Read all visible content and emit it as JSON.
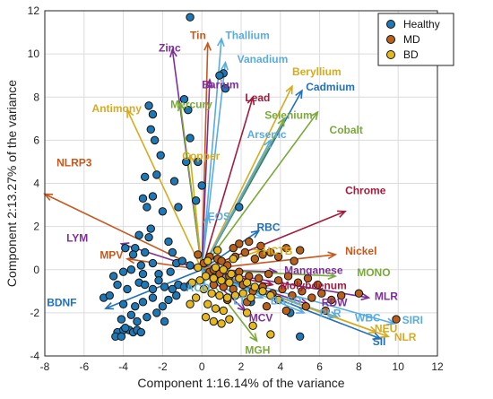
{
  "chart_data": {
    "type": "scatter",
    "title": "",
    "xlabel": "Component 1:16.14% of the variance",
    "ylabel": "Component 2:13.27% of the variance",
    "xlim": [
      -8,
      12
    ],
    "ylim": [
      -4,
      12
    ],
    "xticks": [
      "-8",
      "-6",
      "-4",
      "-2",
      "0",
      "2",
      "4",
      "6",
      "8",
      "10",
      "12"
    ],
    "yticks": [
      "-4",
      "-2",
      "0",
      "2",
      "4",
      "6",
      "8",
      "10",
      "12"
    ],
    "grid": true,
    "legend_position": "top-right",
    "series": [
      {
        "name": "Healthy",
        "color": "#1f77b4",
        "points": [
          [
            -0.6,
            11.7
          ],
          [
            1.1,
            9.1
          ],
          [
            1.2,
            8.4
          ],
          [
            0.9,
            9.0
          ],
          [
            -0.9,
            7.9
          ],
          [
            -0.7,
            7.4
          ],
          [
            -0.8,
            5.0
          ],
          [
            -0.6,
            6.1
          ],
          [
            -2.5,
            7.2
          ],
          [
            -2.6,
            6.5
          ],
          [
            -2.4,
            6.0
          ],
          [
            -2.7,
            7.6
          ],
          [
            -2.1,
            5.3
          ],
          [
            -2.3,
            4.4
          ],
          [
            -2.9,
            4.3
          ],
          [
            -2.5,
            3.4
          ],
          [
            -3.0,
            3.3
          ],
          [
            -2.8,
            2.9
          ],
          [
            -2.0,
            2.7
          ],
          [
            -1.2,
            2.9
          ],
          [
            -0.2,
            5.0
          ],
          [
            0.0,
            3.9
          ],
          [
            -0.3,
            3.2
          ],
          [
            1.9,
            2.9
          ],
          [
            -1.4,
            4.1
          ],
          [
            -3.9,
            1.0
          ],
          [
            -3.2,
            1.6
          ],
          [
            -2.6,
            1.9
          ],
          [
            -2.7,
            1.5
          ],
          [
            -3.4,
            1.0
          ],
          [
            -2.9,
            0.8
          ],
          [
            -3.5,
            0.7
          ],
          [
            -2.5,
            0.3
          ],
          [
            -3.1,
            0.2
          ],
          [
            -3.6,
            0.0
          ],
          [
            -4.0,
            -0.1
          ],
          [
            -4.5,
            -0.3
          ],
          [
            -3.0,
            -0.2
          ],
          [
            -2.2,
            -0.2
          ],
          [
            -1.6,
            -0.1
          ],
          [
            -1.3,
            0.3
          ],
          [
            -1.0,
            0.4
          ],
          [
            -0.6,
            0.2
          ],
          [
            -5.0,
            -1.3
          ],
          [
            -4.7,
            -1.2
          ],
          [
            -4.3,
            -0.7
          ],
          [
            -3.8,
            -0.9
          ],
          [
            -3.2,
            -0.6
          ],
          [
            -2.9,
            -0.7
          ],
          [
            -2.5,
            -0.9
          ],
          [
            -2.2,
            -0.5
          ],
          [
            -1.9,
            -0.8
          ],
          [
            -1.5,
            -0.9
          ],
          [
            -1.2,
            -0.7
          ],
          [
            -0.9,
            -0.8
          ],
          [
            -0.6,
            -0.7
          ],
          [
            -4.0,
            -1.6
          ],
          [
            -3.4,
            -1.7
          ],
          [
            -3.0,
            -1.5
          ],
          [
            -2.5,
            -1.3
          ],
          [
            -2.0,
            -1.7
          ],
          [
            -1.7,
            -1.4
          ],
          [
            -1.3,
            -1.2
          ],
          [
            -4.1,
            -2.3
          ],
          [
            -3.6,
            -2.1
          ],
          [
            -3.3,
            -2.4
          ],
          [
            -2.8,
            -2.2
          ],
          [
            -2.3,
            -2.0
          ],
          [
            -1.9,
            -2.4
          ],
          [
            -4.3,
            -2.9
          ],
          [
            -4.0,
            -2.8
          ],
          [
            -3.7,
            -2.8
          ],
          [
            -3.5,
            -2.9
          ],
          [
            -3.3,
            -2.8
          ],
          [
            -4.4,
            -3.1
          ],
          [
            -4.1,
            -3.1
          ],
          [
            -3.9,
            -2.7
          ],
          [
            -3.1,
            -2.9
          ],
          [
            2.5,
            -1.5
          ],
          [
            4.5,
            -2.0
          ],
          [
            5.0,
            -3.1
          ],
          [
            -1.7,
            1.3
          ],
          [
            -1.5,
            0.8
          ]
        ]
      },
      {
        "name": "MD",
        "color": "#b8611d",
        "points": [
          [
            -0.2,
            0.7
          ],
          [
            0.1,
            0.3
          ],
          [
            0.4,
            0.6
          ],
          [
            0.8,
            0.5
          ],
          [
            1.3,
            0.2
          ],
          [
            1.7,
            0.6
          ],
          [
            2.2,
            0.8
          ],
          [
            2.7,
            0.5
          ],
          [
            3.1,
            0.7
          ],
          [
            3.5,
            0.8
          ],
          [
            3.9,
            0.6
          ],
          [
            4.3,
            1.0
          ],
          [
            4.7,
            0.4
          ],
          [
            5.0,
            0.9
          ],
          [
            1.6,
            1.0
          ],
          [
            1.9,
            1.2
          ],
          [
            2.4,
            1.3
          ],
          [
            3.0,
            1.1
          ],
          [
            0.4,
            -0.1
          ],
          [
            0.9,
            -0.2
          ],
          [
            1.4,
            -0.3
          ],
          [
            1.9,
            -0.1
          ],
          [
            2.4,
            -0.3
          ],
          [
            2.9,
            -0.4
          ],
          [
            3.4,
            -0.2
          ],
          [
            3.9,
            -0.5
          ],
          [
            4.4,
            -0.3
          ],
          [
            4.9,
            -0.6
          ],
          [
            5.4,
            -0.4
          ],
          [
            5.9,
            -0.7
          ],
          [
            0.6,
            -0.7
          ],
          [
            1.1,
            -0.8
          ],
          [
            1.6,
            -0.9
          ],
          [
            2.1,
            -0.7
          ],
          [
            2.6,
            -1.0
          ],
          [
            3.1,
            -0.8
          ],
          [
            3.6,
            -1.1
          ],
          [
            4.1,
            -0.9
          ],
          [
            4.6,
            -1.2
          ],
          [
            5.1,
            -1.0
          ],
          [
            5.6,
            -1.3
          ],
          [
            6.1,
            -1.1
          ],
          [
            6.6,
            -1.4
          ],
          [
            7.1,
            -1.2
          ],
          [
            8.0,
            -1.1
          ],
          [
            9.9,
            -2.3
          ],
          [
            1.3,
            -1.4
          ],
          [
            2.3,
            -1.5
          ],
          [
            3.3,
            -1.7
          ],
          [
            4.3,
            -1.9
          ],
          [
            5.3,
            -1.7
          ],
          [
            6.3,
            -1.9
          ],
          [
            0.6,
            0.0
          ],
          [
            1.0,
            0.4
          ]
        ]
      },
      {
        "name": "BD",
        "color": "#e6b81f",
        "points": [
          [
            -0.2,
            0.1
          ],
          [
            0.2,
            -0.3
          ],
          [
            0.6,
            -0.4
          ],
          [
            1.0,
            -0.5
          ],
          [
            1.4,
            -0.6
          ],
          [
            0.1,
            -0.9
          ],
          [
            0.5,
            -1.1
          ],
          [
            0.9,
            -1.2
          ],
          [
            1.3,
            -1.3
          ],
          [
            1.7,
            -1.2
          ],
          [
            0.3,
            -1.6
          ],
          [
            0.7,
            -1.8
          ],
          [
            1.1,
            -1.9
          ],
          [
            0.2,
            -2.2
          ],
          [
            0.6,
            -2.4
          ],
          [
            1.0,
            -2.5
          ],
          [
            1.4,
            -2.3
          ],
          [
            2.3,
            -2.0
          ],
          [
            2.6,
            -2.6
          ],
          [
            3.5,
            -3.0
          ],
          [
            -0.3,
            -1.3
          ],
          [
            -0.1,
            -0.5
          ],
          [
            0.3,
            0.4
          ],
          [
            0.7,
            0.1
          ],
          [
            1.1,
            0.0
          ],
          [
            1.5,
            -0.2
          ],
          [
            1.9,
            -0.4
          ],
          [
            2.3,
            -0.6
          ],
          [
            2.7,
            -0.8
          ],
          [
            3.1,
            -1.0
          ],
          [
            3.5,
            -1.2
          ],
          [
            3.9,
            -1.4
          ],
          [
            2.1,
            -1.1
          ],
          [
            2.5,
            -1.3
          ],
          [
            0.8,
            0.9
          ],
          [
            1.6,
            0.5
          ],
          [
            -0.5,
            -0.6
          ],
          [
            -0.6,
            -1.6
          ]
        ]
      }
    ],
    "vectors": [
      {
        "label": "Tin",
        "x": 0.3,
        "y": 10.5,
        "color": "#c8581d"
      },
      {
        "label": "Thallium",
        "x": 1.0,
        "y": 10.7,
        "color": "#5aacdf"
      },
      {
        "label": "Zinc",
        "x": -1.5,
        "y": 10.2,
        "color": "#7d2f97"
      },
      {
        "label": "Vanadium",
        "x": 1.2,
        "y": 9.6,
        "color": "#5aacdf"
      },
      {
        "label": "Beryllium",
        "x": 4.6,
        "y": 8.5,
        "color": "#d8ab1e"
      },
      {
        "label": "Barium",
        "x": 0.4,
        "y": 8.8,
        "color": "#7d2f97"
      },
      {
        "label": "Lead",
        "x": 2.6,
        "y": 8.0,
        "color": "#a01c3d"
      },
      {
        "label": "Cadmium",
        "x": 5.1,
        "y": 8.3,
        "color": "#2271b8"
      },
      {
        "label": "Mercury",
        "x": -1.1,
        "y": 7.7,
        "color": "#7aa93a"
      },
      {
        "label": "Antimony",
        "x": -3.8,
        "y": 7.4,
        "color": "#d8ab1e"
      },
      {
        "label": "Selenium",
        "x": 4.2,
        "y": 7.0,
        "color": "#7aa93a"
      },
      {
        "label": "Arsenic",
        "x": 3.5,
        "y": 6.0,
        "color": "#5aacdf"
      },
      {
        "label": "Cobalt",
        "x": 5.9,
        "y": 7.3,
        "color": "#7aa93a"
      },
      {
        "label": "Copper",
        "x": -0.6,
        "y": 5.3,
        "color": "#d8ab1e"
      },
      {
        "label": "NLRP3",
        "x": -8.0,
        "y": 3.5,
        "color": "#c8581d"
      },
      {
        "label": "Chrome",
        "x": 7.3,
        "y": 2.7,
        "color": "#a01c3d"
      },
      {
        "label": "EOS",
        "x": 0.3,
        "y": 2.5,
        "color": "#5aacdf"
      },
      {
        "label": "RBC",
        "x": 2.9,
        "y": 1.8,
        "color": "#2271b8"
      },
      {
        "label": "LYM",
        "x": -4.1,
        "y": 1.2,
        "color": "#7d2f97"
      },
      {
        "label": "HCTB",
        "x": 3.0,
        "y": 0.9,
        "color": "#d8ab1e"
      },
      {
        "label": "MPV",
        "x": -3.8,
        "y": 0.5,
        "color": "#c8581d"
      },
      {
        "label": "Nickel",
        "x": 6.8,
        "y": 0.7,
        "color": "#c8581d"
      },
      {
        "label": "Manganese",
        "x": 3.8,
        "y": -0.1,
        "color": "#7d2f97"
      },
      {
        "label": "MONO",
        "x": 6.8,
        "y": -0.3,
        "color": "#7aa93a"
      },
      {
        "label": "Molybdenum",
        "x": 3.6,
        "y": -0.7,
        "color": "#a01c3d"
      },
      {
        "label": "BASO",
        "x": 3.1,
        "y": -1.3,
        "color": "#5aacdf"
      },
      {
        "label": "RDW",
        "x": 5.4,
        "y": -1.6,
        "color": "#7d2f97"
      },
      {
        "label": "MLR",
        "x": 8.5,
        "y": -1.3,
        "color": "#7d2f97"
      },
      {
        "label": "PLR",
        "x": 5.2,
        "y": -2.0,
        "color": "#5aacdf"
      },
      {
        "label": "WBC",
        "x": 6.9,
        "y": -2.2,
        "color": "#5aacdf"
      },
      {
        "label": "NEU",
        "x": 8.9,
        "y": -2.9,
        "color": "#d8ab1e"
      },
      {
        "label": "SIRI",
        "x": 9.8,
        "y": -2.5,
        "color": "#5aacdf"
      },
      {
        "label": "NLR",
        "x": 9.5,
        "y": -3.1,
        "color": "#d8ab1e"
      },
      {
        "label": "SII",
        "x": 9.1,
        "y": -3.2,
        "color": "#2271b8"
      },
      {
        "label": "MCV",
        "x": 2.2,
        "y": -1.9,
        "color": "#7d2f97"
      },
      {
        "label": "MGH",
        "x": 2.8,
        "y": -3.3,
        "color": "#7aa93a"
      },
      {
        "label": "LT",
        "x": 1.7,
        "y": -1.2,
        "color": "#5aacdf"
      },
      {
        "label": "BDNF",
        "x": -4.9,
        "y": -1.8,
        "color": "#2271b8"
      },
      {
        "label": "ACO",
        "x": 0.1,
        "y": -0.7,
        "color": "#5aacdf"
      }
    ],
    "vector_labels": [
      {
        "label": "Tin",
        "x": -0.6,
        "y": 10.7
      },
      {
        "label": "Thallium",
        "x": 1.2,
        "y": 10.7
      },
      {
        "label": "Zinc",
        "x": -2.2,
        "y": 10.1
      },
      {
        "label": "Vanadium",
        "x": 1.8,
        "y": 9.6
      },
      {
        "label": "Beryllium",
        "x": 4.6,
        "y": 9.0
      },
      {
        "label": "Barium",
        "x": 0.0,
        "y": 8.4
      },
      {
        "label": "Lead",
        "x": 2.2,
        "y": 7.8
      },
      {
        "label": "Cadmium",
        "x": 5.3,
        "y": 8.3
      },
      {
        "label": "Mercury",
        "x": -1.6,
        "y": 7.5
      },
      {
        "label": "Antimony",
        "x": -5.6,
        "y": 7.3
      },
      {
        "label": "Selenium",
        "x": 3.2,
        "y": 7.0
      },
      {
        "label": "Arsenic",
        "x": 2.3,
        "y": 6.1
      },
      {
        "label": "Cobalt",
        "x": 6.5,
        "y": 6.3
      },
      {
        "label": "Copper",
        "x": -1.0,
        "y": 5.1
      },
      {
        "label": "NLRP3",
        "x": -7.4,
        "y": 4.8
      },
      {
        "label": "Chrome",
        "x": 7.3,
        "y": 3.5
      },
      {
        "label": "EOS",
        "x": 0.3,
        "y": 2.3
      },
      {
        "label": "RBC",
        "x": 2.8,
        "y": 1.8
      },
      {
        "label": "LYM",
        "x": -6.9,
        "y": 1.3
      },
      {
        "label": "HCTB",
        "x": 3.1,
        "y": 0.7
      },
      {
        "label": "MPV",
        "x": -5.2,
        "y": 0.5
      },
      {
        "label": "Nickel",
        "x": 7.3,
        "y": 0.7
      },
      {
        "label": "Manganese",
        "x": 4.2,
        "y": -0.2
      },
      {
        "label": "MONO",
        "x": 7.9,
        "y": -0.3
      },
      {
        "label": "Molybdenum",
        "x": 4.0,
        "y": -0.9
      },
      {
        "label": "BASO",
        "x": 3.5,
        "y": -1.6
      },
      {
        "label": "RDW",
        "x": 6.1,
        "y": -1.7
      },
      {
        "label": "MLR",
        "x": 8.8,
        "y": -1.4
      },
      {
        "label": "PLR",
        "x": 6.0,
        "y": -2.2
      },
      {
        "label": "WBC",
        "x": 7.8,
        "y": -2.4
      },
      {
        "label": "NEU",
        "x": 8.8,
        "y": -2.9
      },
      {
        "label": "SIRI",
        "x": 10.2,
        "y": -2.5
      },
      {
        "label": "NLR",
        "x": 9.8,
        "y": -3.3
      },
      {
        "label": "SII",
        "x": 8.7,
        "y": -3.5
      },
      {
        "label": "MCV",
        "x": 2.4,
        "y": -2.4
      },
      {
        "label": "MGH",
        "x": 2.2,
        "y": -3.9
      },
      {
        "label": "LT",
        "x": 1.6,
        "y": -1.6
      },
      {
        "label": "BDNF",
        "x": -7.9,
        "y": -1.7
      },
      {
        "label": "ACO",
        "x": -0.8,
        "y": -1.0
      }
    ]
  }
}
